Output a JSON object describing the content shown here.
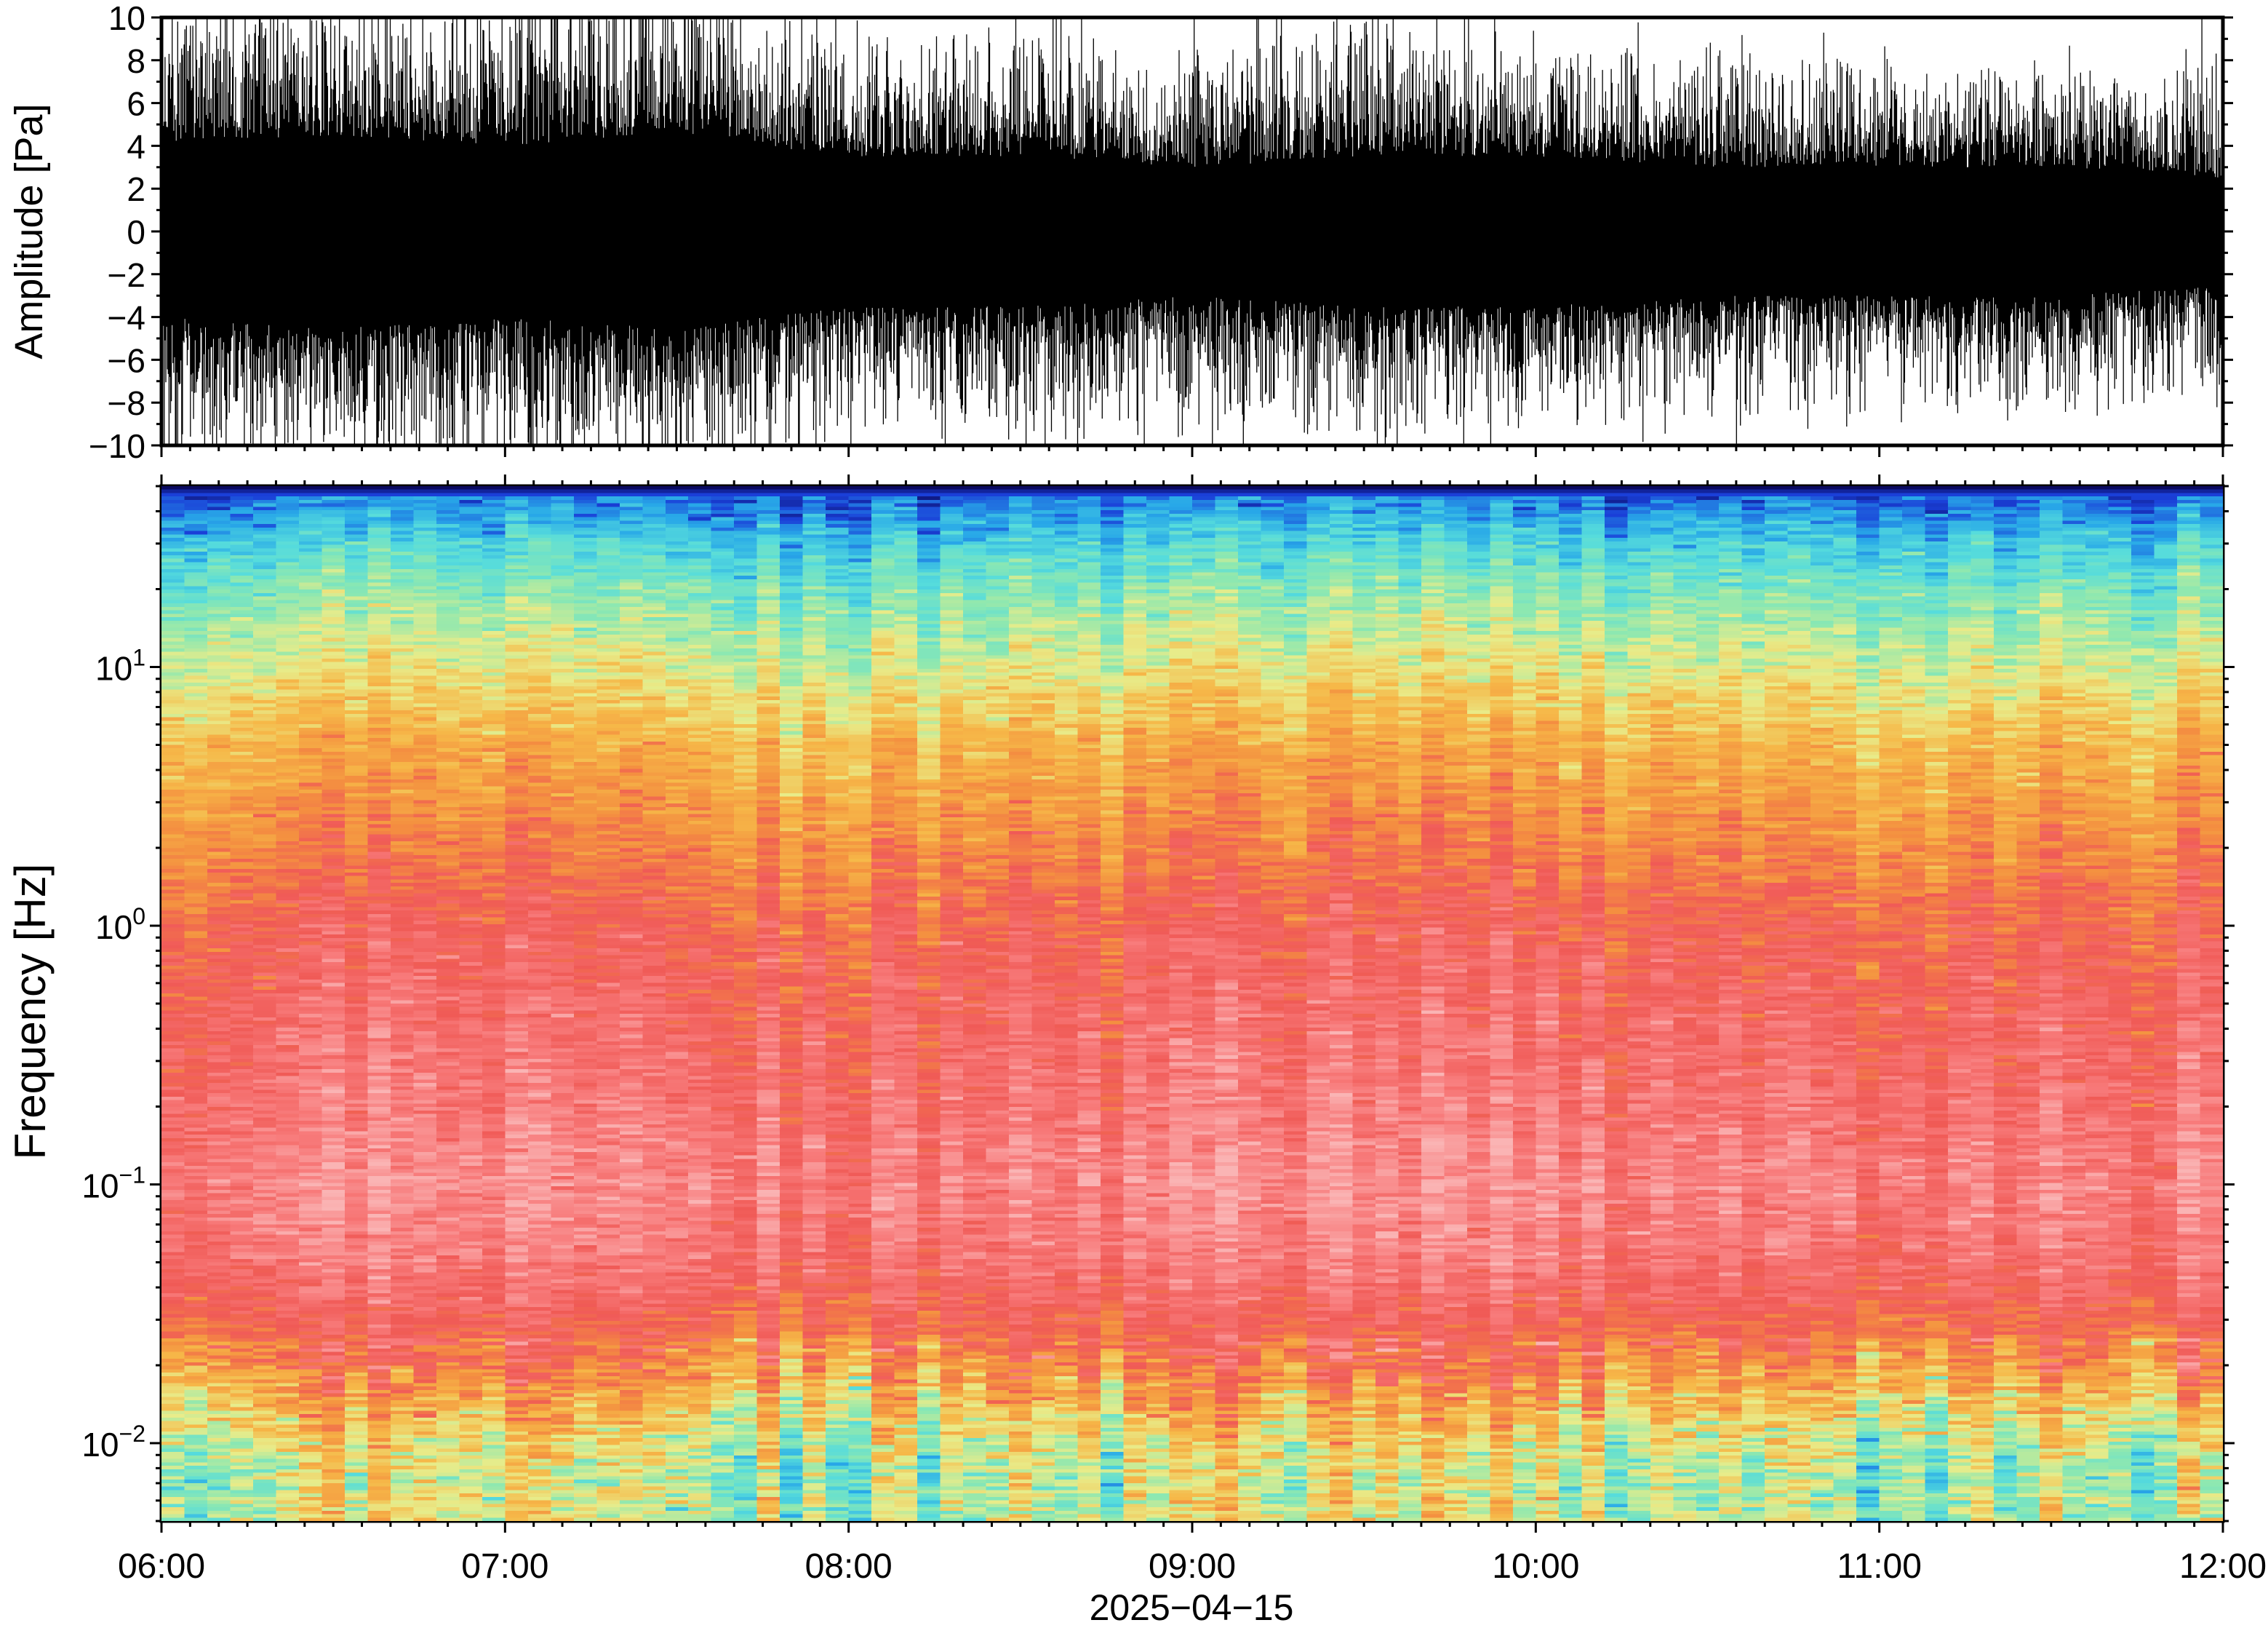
{
  "chart_data": [
    {
      "type": "line",
      "panel": "waveform",
      "ylabel": "Amplitude [Pa]",
      "ylim": [
        -10,
        10
      ],
      "yticks": [
        -10,
        -8,
        -6,
        -4,
        -2,
        0,
        2,
        4,
        6,
        8,
        10
      ],
      "ytick_labels": [
        "−10",
        "−8",
        "−6",
        "−4",
        "−2",
        "0",
        "2",
        "4",
        "6",
        "8",
        "10"
      ],
      "x_range": [
        "06:00",
        "12:00"
      ],
      "line_color": "#000000",
      "envelope": {
        "note_hours": [
          6.0,
          6.5,
          7.0,
          7.5,
          8.0,
          8.5,
          9.0,
          9.5,
          10.0,
          10.5,
          11.0,
          11.5,
          12.0
        ],
        "typical_peak_pa": [
          9.5,
          8.5,
          9.0,
          9.5,
          7.0,
          7.5,
          6.5,
          8.0,
          7.0,
          6.5,
          6.0,
          6.5,
          6.0
        ],
        "dense_band_pa": [
          4.0,
          4.5,
          4.0,
          4.5,
          3.5,
          3.5,
          3.0,
          3.5,
          3.5,
          3.0,
          3.0,
          3.0,
          2.5
        ]
      }
    },
    {
      "type": "heatmap",
      "panel": "spectrogram",
      "ylabel": "Frequency [Hz]",
      "xlabel": "2025−04−15",
      "y_scale": "log",
      "ylim": [
        0.005,
        50
      ],
      "yticks": [
        {
          "value": 0.01,
          "base": "10",
          "exp": "−2"
        },
        {
          "value": 0.1,
          "base": "10",
          "exp": "−1"
        },
        {
          "value": 1,
          "base": "10",
          "exp": "0"
        },
        {
          "value": 10,
          "base": "10",
          "exp": "1"
        }
      ],
      "xticks": [
        "06:00",
        "07:00",
        "08:00",
        "09:00",
        "10:00",
        "11:00",
        "12:00"
      ],
      "colormap": [
        "#0a0a60",
        "#1a3fd8",
        "#28a8e8",
        "#56dcdc",
        "#8ee8b0",
        "#e8ec8a",
        "#f6b848",
        "#f49040",
        "#f05a56",
        "#f87c7c",
        "#fab4b4"
      ],
      "profile_freq_hz": [
        50,
        45,
        30,
        20,
        10,
        5,
        2,
        1,
        0.5,
        0.2,
        0.1,
        0.05,
        0.03,
        0.02,
        0.015,
        0.01,
        0.007,
        0.005
      ],
      "profile_level": [
        0.0,
        0.15,
        0.28,
        0.38,
        0.5,
        0.62,
        0.72,
        0.8,
        0.84,
        0.88,
        0.92,
        0.88,
        0.8,
        0.72,
        0.62,
        0.5,
        0.45,
        0.48
      ]
    }
  ]
}
